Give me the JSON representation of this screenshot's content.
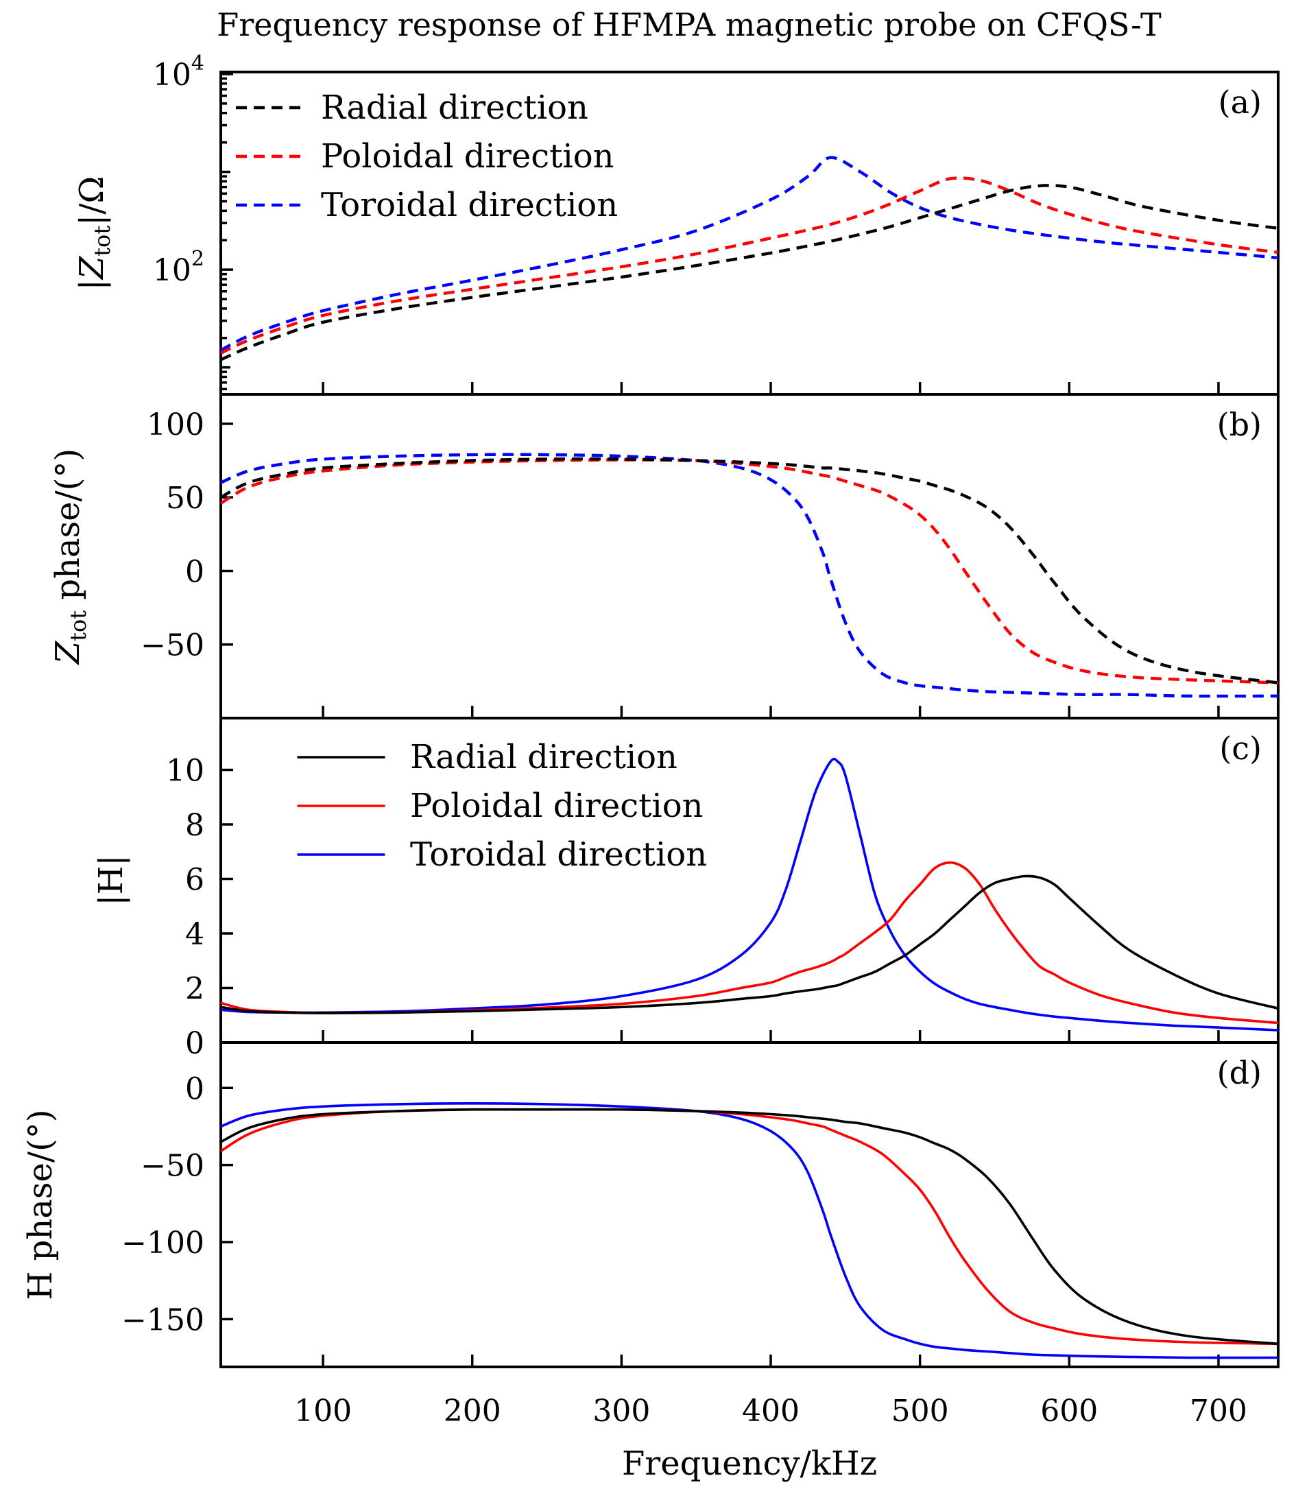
{
  "chart_data": {
    "title": "Frequency response of HFMPA magnetic probe on CFQS-T",
    "xlabel": "Frequency/kHz",
    "xlim": [
      31.5,
      740
    ],
    "xticks": [
      100,
      200,
      300,
      400,
      500,
      600,
      700
    ],
    "xtick_labels": [
      "100",
      "200",
      "300",
      "400",
      "500",
      "600",
      "700"
    ],
    "colors": {
      "Radial direction": "#000000",
      "Poloidal direction": "#ff0000",
      "Toroidal direction": "#0000ff"
    },
    "panels": [
      {
        "tag": "(a)",
        "type": "line",
        "ylabel": "|Z_tot|/Ω",
        "ylabel_main": "|Z",
        "ylabel_sub": "tot",
        "ylabel_tail": "|/Ω",
        "yscale": "log",
        "ylim": [
          5.3,
          10500
        ],
        "yticks": [
          100,
          10000
        ],
        "ytick_labels": [
          {
            "base": "10",
            "exp": "2"
          },
          {
            "base": "10",
            "exp": "4"
          }
        ],
        "line_style": "dashed",
        "legend": {
          "position": "top-left",
          "entries": [
            "Radial direction",
            "Poloidal direction",
            "Toroidal direction"
          ]
        },
        "x": [
          31.5,
          50,
          75,
          100,
          150,
          200,
          250,
          300,
          350,
          400,
          425,
          440,
          460,
          480,
          500,
          520,
          540,
          560,
          580,
          600,
          625,
          650,
          700,
          740
        ],
        "series": [
          {
            "name": "Radial direction",
            "values": [
              12,
              16,
              22,
              29,
              40,
              52,
              66,
              84,
              110,
              148,
              175,
              195,
              230,
              275,
              340,
              420,
              520,
              640,
              720,
              700,
              560,
              440,
              320,
              265
            ]
          },
          {
            "name": "Poloidal direction",
            "values": [
              14,
              19,
              26,
              34,
              48,
              63,
              82,
              107,
              145,
              210,
              255,
              290,
              360,
              470,
              640,
              850,
              820,
              640,
              470,
              370,
              290,
              240,
              180,
              150
            ]
          },
          {
            "name": "Toroidal direction",
            "values": [
              15,
              21,
              29,
              38,
              56,
              78,
              110,
              160,
              250,
              520,
              900,
              1400,
              1000,
              620,
              430,
              340,
              290,
              255,
              230,
              210,
              190,
              175,
              150,
              132
            ]
          }
        ]
      },
      {
        "tag": "(b)",
        "type": "line",
        "ylabel": "Z_tot phase/(°)",
        "ylabel_main": "Z",
        "ylabel_sub": "tot",
        "ylabel_tail": " phase/(°)",
        "ylim": [
          -100,
          120
        ],
        "yticks": [
          -50,
          0,
          50,
          100
        ],
        "ytick_labels": [
          "−50",
          "0",
          "50",
          "100"
        ],
        "line_style": "dashed",
        "x": [
          31.5,
          50,
          75,
          100,
          150,
          200,
          250,
          300,
          350,
          380,
          400,
          415,
          425,
          435,
          440,
          450,
          460,
          475,
          490,
          500,
          510,
          520,
          530,
          545,
          560,
          575,
          590,
          610,
          640,
          680,
          740
        ],
        "series": [
          {
            "name": "Radial direction",
            "values": [
              50,
              60,
              66,
              70,
              73,
              75,
              76,
              76,
              75,
              74,
              73,
              72,
              71,
              70,
              70,
              69,
              68,
              66,
              63,
              61,
              58,
              55,
              51,
              43,
              30,
              12,
              -8,
              -32,
              -55,
              -68,
              -76
            ]
          },
          {
            "name": "Poloidal direction",
            "values": [
              46,
              57,
              64,
              68,
              72,
              74,
              75,
              75.5,
              75,
              73,
              71,
              69,
              67,
              65,
              64,
              61,
              58,
              53,
              45,
              38,
              28,
              15,
              0,
              -22,
              -42,
              -55,
              -62,
              -68,
              -72,
              -74,
              -76
            ]
          },
          {
            "name": "Toroidal direction",
            "values": [
              60,
              68,
              73,
              76,
              78,
              79,
              79,
              78,
              75,
              70,
              62,
              50,
              36,
              12,
              -5,
              -35,
              -55,
              -70,
              -76,
              -78,
              -79,
              -80,
              -81,
              -82,
              -82.5,
              -83,
              -83.5,
              -84,
              -84,
              -85,
              -85
            ]
          }
        ]
      },
      {
        "tag": "(c)",
        "type": "line",
        "ylabel": "|H|",
        "ylim": [
          0,
          11.9
        ],
        "yticks": [
          0,
          2,
          4,
          6,
          8,
          10
        ],
        "ytick_labels": [
          "0",
          "2",
          "4",
          "6",
          "8",
          "10"
        ],
        "line_style": "solid",
        "legend": {
          "position": "top-center",
          "entries": [
            "Radial direction",
            "Poloidal direction",
            "Toroidal direction"
          ]
        },
        "x": [
          31.5,
          50,
          75,
          100,
          150,
          200,
          250,
          300,
          350,
          380,
          400,
          410,
          420,
          430,
          440,
          445,
          450,
          460,
          470,
          480,
          490,
          500,
          510,
          520,
          530,
          540,
          550,
          560,
          570,
          580,
          590,
          600,
          620,
          640,
          670,
          700,
          740
        ],
        "series": [
          {
            "name": "Radial direction",
            "values": [
              1.3,
              1.15,
              1.1,
              1.08,
              1.1,
              1.15,
              1.22,
              1.3,
              1.45,
              1.6,
              1.7,
              1.8,
              1.88,
              1.95,
              2.05,
              2.1,
              2.2,
              2.4,
              2.6,
              2.9,
              3.2,
              3.6,
              4.0,
              4.5,
              5.0,
              5.5,
              5.85,
              6.0,
              6.1,
              6.05,
              5.8,
              5.3,
              4.3,
              3.4,
              2.5,
              1.8,
              1.25
            ]
          },
          {
            "name": "Poloidal direction",
            "values": [
              1.45,
              1.2,
              1.12,
              1.08,
              1.1,
              1.18,
              1.28,
              1.42,
              1.7,
              2.0,
              2.2,
              2.4,
              2.6,
              2.75,
              2.95,
              3.1,
              3.25,
              3.65,
              4.05,
              4.5,
              5.2,
              5.8,
              6.4,
              6.6,
              6.4,
              5.8,
              4.9,
              4.1,
              3.4,
              2.8,
              2.5,
              2.2,
              1.75,
              1.45,
              1.1,
              0.9,
              0.72
            ]
          },
          {
            "name": "Toroidal direction",
            "values": [
              1.2,
              1.12,
              1.1,
              1.1,
              1.14,
              1.25,
              1.4,
              1.7,
              2.3,
              3.2,
              4.4,
              5.6,
              7.4,
              9.2,
              10.3,
              10.3,
              9.8,
              7.6,
              5.4,
              4.1,
              3.2,
              2.6,
              2.15,
              1.85,
              1.6,
              1.42,
              1.3,
              1.2,
              1.1,
              1.02,
              0.95,
              0.9,
              0.8,
              0.72,
              0.62,
              0.55,
              0.45
            ]
          }
        ]
      },
      {
        "tag": "(d)",
        "type": "line",
        "ylabel": "H phase/(°)",
        "ylim": [
          -181,
          29.5
        ],
        "yticks": [
          -150,
          -100,
          -50,
          0
        ],
        "ytick_labels": [
          "−150",
          "−100",
          "−50",
          "0"
        ],
        "line_style": "solid",
        "x": [
          31.5,
          50,
          75,
          100,
          150,
          200,
          250,
          300,
          350,
          380,
          400,
          415,
          425,
          435,
          440,
          450,
          460,
          475,
          490,
          500,
          510,
          520,
          530,
          545,
          560,
          575,
          590,
          610,
          640,
          680,
          740
        ],
        "series": [
          {
            "name": "Radial direction",
            "values": [
              -35,
              -26,
              -20,
              -17,
              -15,
              -14,
              -14,
              -14,
              -15,
              -16,
              -17,
              -18,
              -19,
              -20,
              -20.5,
              -22,
              -23,
              -26,
              -29,
              -32,
              -36,
              -40,
              -46,
              -58,
              -75,
              -97,
              -118,
              -137,
              -152,
              -161,
              -166
            ]
          },
          {
            "name": "Poloidal direction",
            "values": [
              -41,
              -30,
              -22,
              -18,
              -15,
              -14,
              -14,
              -14,
              -15,
              -17,
              -19,
              -21,
              -23,
              -25,
              -27,
              -31,
              -35,
              -43,
              -56,
              -66,
              -80,
              -97,
              -112,
              -131,
              -145,
              -152,
              -156,
              -160,
              -163,
              -165,
              -166
            ]
          },
          {
            "name": "Toroidal direction",
            "values": [
              -25,
              -18,
              -14,
              -12,
              -10.5,
              -10,
              -10.5,
              -12,
              -15,
              -20,
              -28,
              -40,
              -55,
              -80,
              -95,
              -122,
              -142,
              -157,
              -163,
              -166,
              -168,
              -169,
              -170,
              -171,
              -172,
              -173,
              -173.5,
              -174,
              -174.5,
              -175,
              -175
            ]
          }
        ]
      }
    ]
  }
}
